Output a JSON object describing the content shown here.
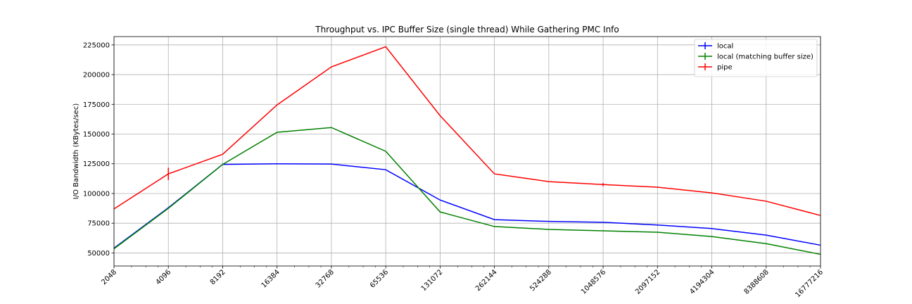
{
  "chart_data": {
    "type": "line",
    "title": "Throughput vs. IPC Buffer Size (single thread) While Gathering PMC Info",
    "xlabel": "",
    "ylabel": "I/O Bandwidth (KBytes/sec)",
    "x_scale": "log2",
    "x": [
      2048,
      4096,
      8192,
      16384,
      32768,
      65536,
      131072,
      262144,
      524288,
      1048576,
      2097152,
      4194304,
      8388608,
      16777216
    ],
    "x_tick_labels": [
      "2048",
      "4096",
      "8192",
      "16384",
      "32768",
      "65536",
      "131072",
      "262144",
      "524288",
      "1048576",
      "2097152",
      "4194304",
      "8388608",
      "16777216"
    ],
    "y_ticks": [
      50000,
      75000,
      100000,
      125000,
      150000,
      175000,
      200000,
      225000
    ],
    "y_tick_labels": [
      "50000",
      "75000",
      "100000",
      "125000",
      "150000",
      "175000",
      "200000",
      "225000"
    ],
    "ylim": [
      39000,
      232000
    ],
    "grid": true,
    "legend_position": "top-right",
    "series": [
      {
        "name": "local",
        "color": "#0000ff",
        "values": [
          54000,
          88000,
          124500,
          125000,
          124800,
          120000,
          94500,
          78000,
          76500,
          75800,
          73500,
          70500,
          65000,
          56500
        ],
        "errors": [
          0,
          0,
          0,
          0,
          0,
          0,
          0,
          0,
          0,
          0,
          0,
          0,
          0,
          0
        ]
      },
      {
        "name": "local (matching buffer size)",
        "color": "#008000",
        "values": [
          53500,
          87500,
          124500,
          151500,
          155500,
          135500,
          84500,
          72200,
          69800,
          68600,
          67400,
          63800,
          57800,
          48800
        ],
        "errors": [
          0,
          0,
          0,
          0,
          0,
          0,
          0,
          0,
          0,
          0,
          0,
          0,
          0,
          0
        ]
      },
      {
        "name": "pipe",
        "color": "#ff0000",
        "values": [
          87000,
          116500,
          133000,
          174500,
          206500,
          223500,
          165500,
          116500,
          110000,
          107500,
          105300,
          100500,
          93500,
          81500
        ],
        "errors": [
          0,
          5200,
          0,
          0,
          0,
          0,
          0,
          0,
          0,
          1300,
          0,
          0,
          0,
          0
        ]
      }
    ]
  }
}
